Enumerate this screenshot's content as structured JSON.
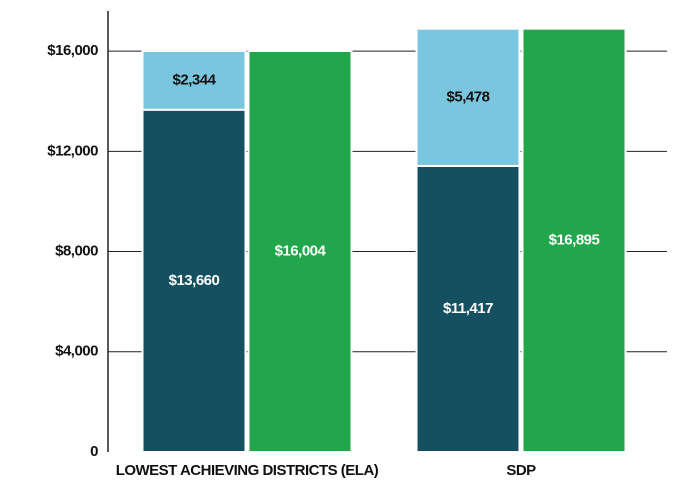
{
  "chart_data": {
    "type": "bar",
    "categories": [
      "LOWEST ACHIEVING DISTRICTS (ELA)",
      "SDP"
    ],
    "series": [
      {
        "color": "#14505f",
        "stack": 0,
        "values": [
          13660,
          11417
        ],
        "value_labels": [
          "$13,660",
          "$11,417"
        ]
      },
      {
        "color": "#7ac6df",
        "stack": 0,
        "values": [
          2344,
          5478
        ],
        "value_labels": [
          "$2,344",
          "$5,478"
        ]
      },
      {
        "color": "#22a64b",
        "stack": 1,
        "values": [
          16004,
          16895
        ],
        "value_labels": [
          "$16,004",
          "$16,895"
        ]
      }
    ],
    "ylim": [
      0,
      17600
    ],
    "yticks": [
      0,
      {
        "value": 4000,
        "label": "$4,000"
      },
      {
        "value": 8000,
        "label": "$8,000"
      },
      {
        "value": 12000,
        "label": "$12,000"
      },
      {
        "value": 16000,
        "label": "$16,000"
      }
    ],
    "grid": true
  }
}
